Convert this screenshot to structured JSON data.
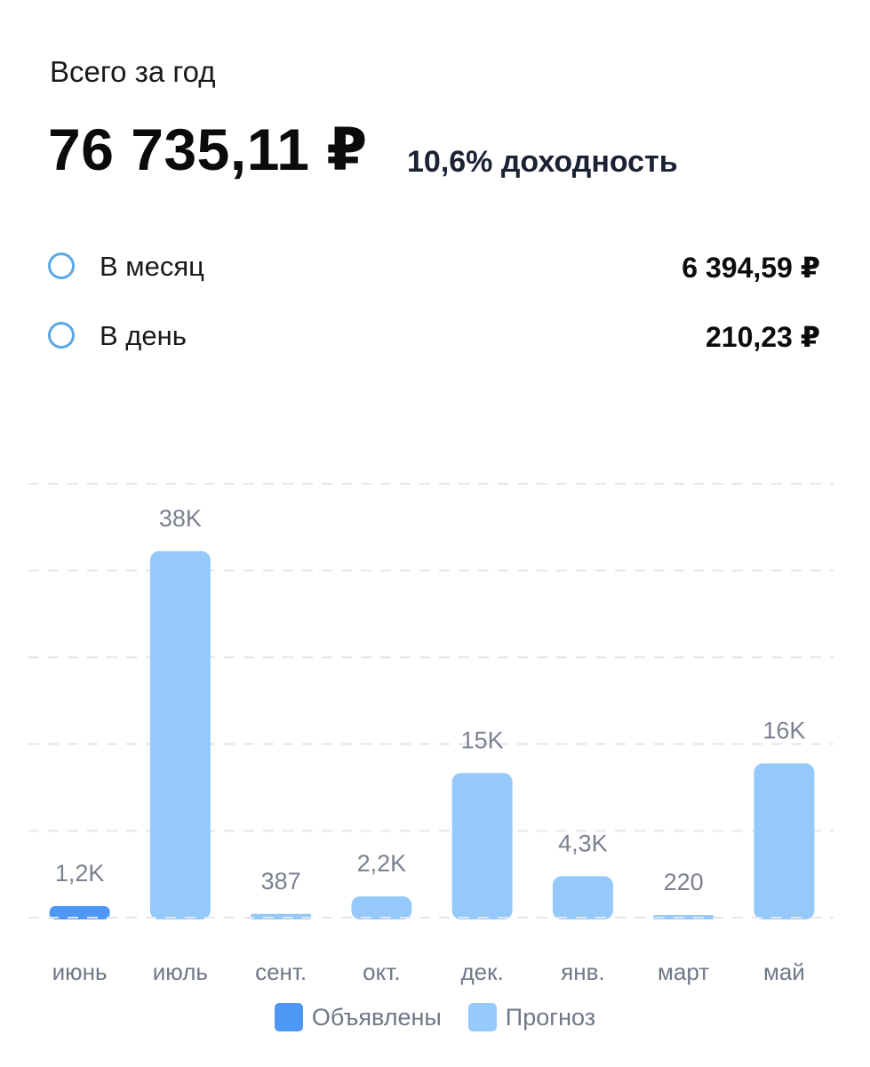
{
  "summary": {
    "caption": "Всего за год",
    "total": "76 735,11 ₽",
    "yield": "10,6% доходность"
  },
  "breakdown": {
    "month": {
      "label": "В месяц",
      "value": "6 394,59 ₽"
    },
    "day": {
      "label": "В день",
      "value": "210,23 ₽"
    }
  },
  "colors": {
    "declared": "#4f97f5",
    "forecast": "#95c9fb",
    "radio": "#5aa8e6"
  },
  "chart_data": {
    "type": "bar",
    "title": "",
    "xlabel": "",
    "ylabel": "",
    "ylim": [
      0,
      45000
    ],
    "grid": true,
    "legend_position": "bottom",
    "categories": [
      "июнь",
      "июль",
      "сент.",
      "окт.",
      "дек.",
      "янв.",
      "март",
      "май"
    ],
    "values": [
      1200,
      38000,
      387,
      2200,
      15000,
      4300,
      220,
      16000
    ],
    "value_labels": [
      "1,2K",
      "38K",
      "387",
      "2,2K",
      "15K",
      "4,3K",
      "220",
      "16K"
    ],
    "series_of_bar": [
      "Объявлены",
      "Прогноз",
      "Прогноз",
      "Прогноз",
      "Прогноз",
      "Прогноз",
      "Прогноз",
      "Прогноз"
    ],
    "series": [
      {
        "name": "Объявлены"
      },
      {
        "name": "Прогноз"
      }
    ]
  },
  "legend": {
    "declared": "Объявлены",
    "forecast": "Прогноз"
  }
}
